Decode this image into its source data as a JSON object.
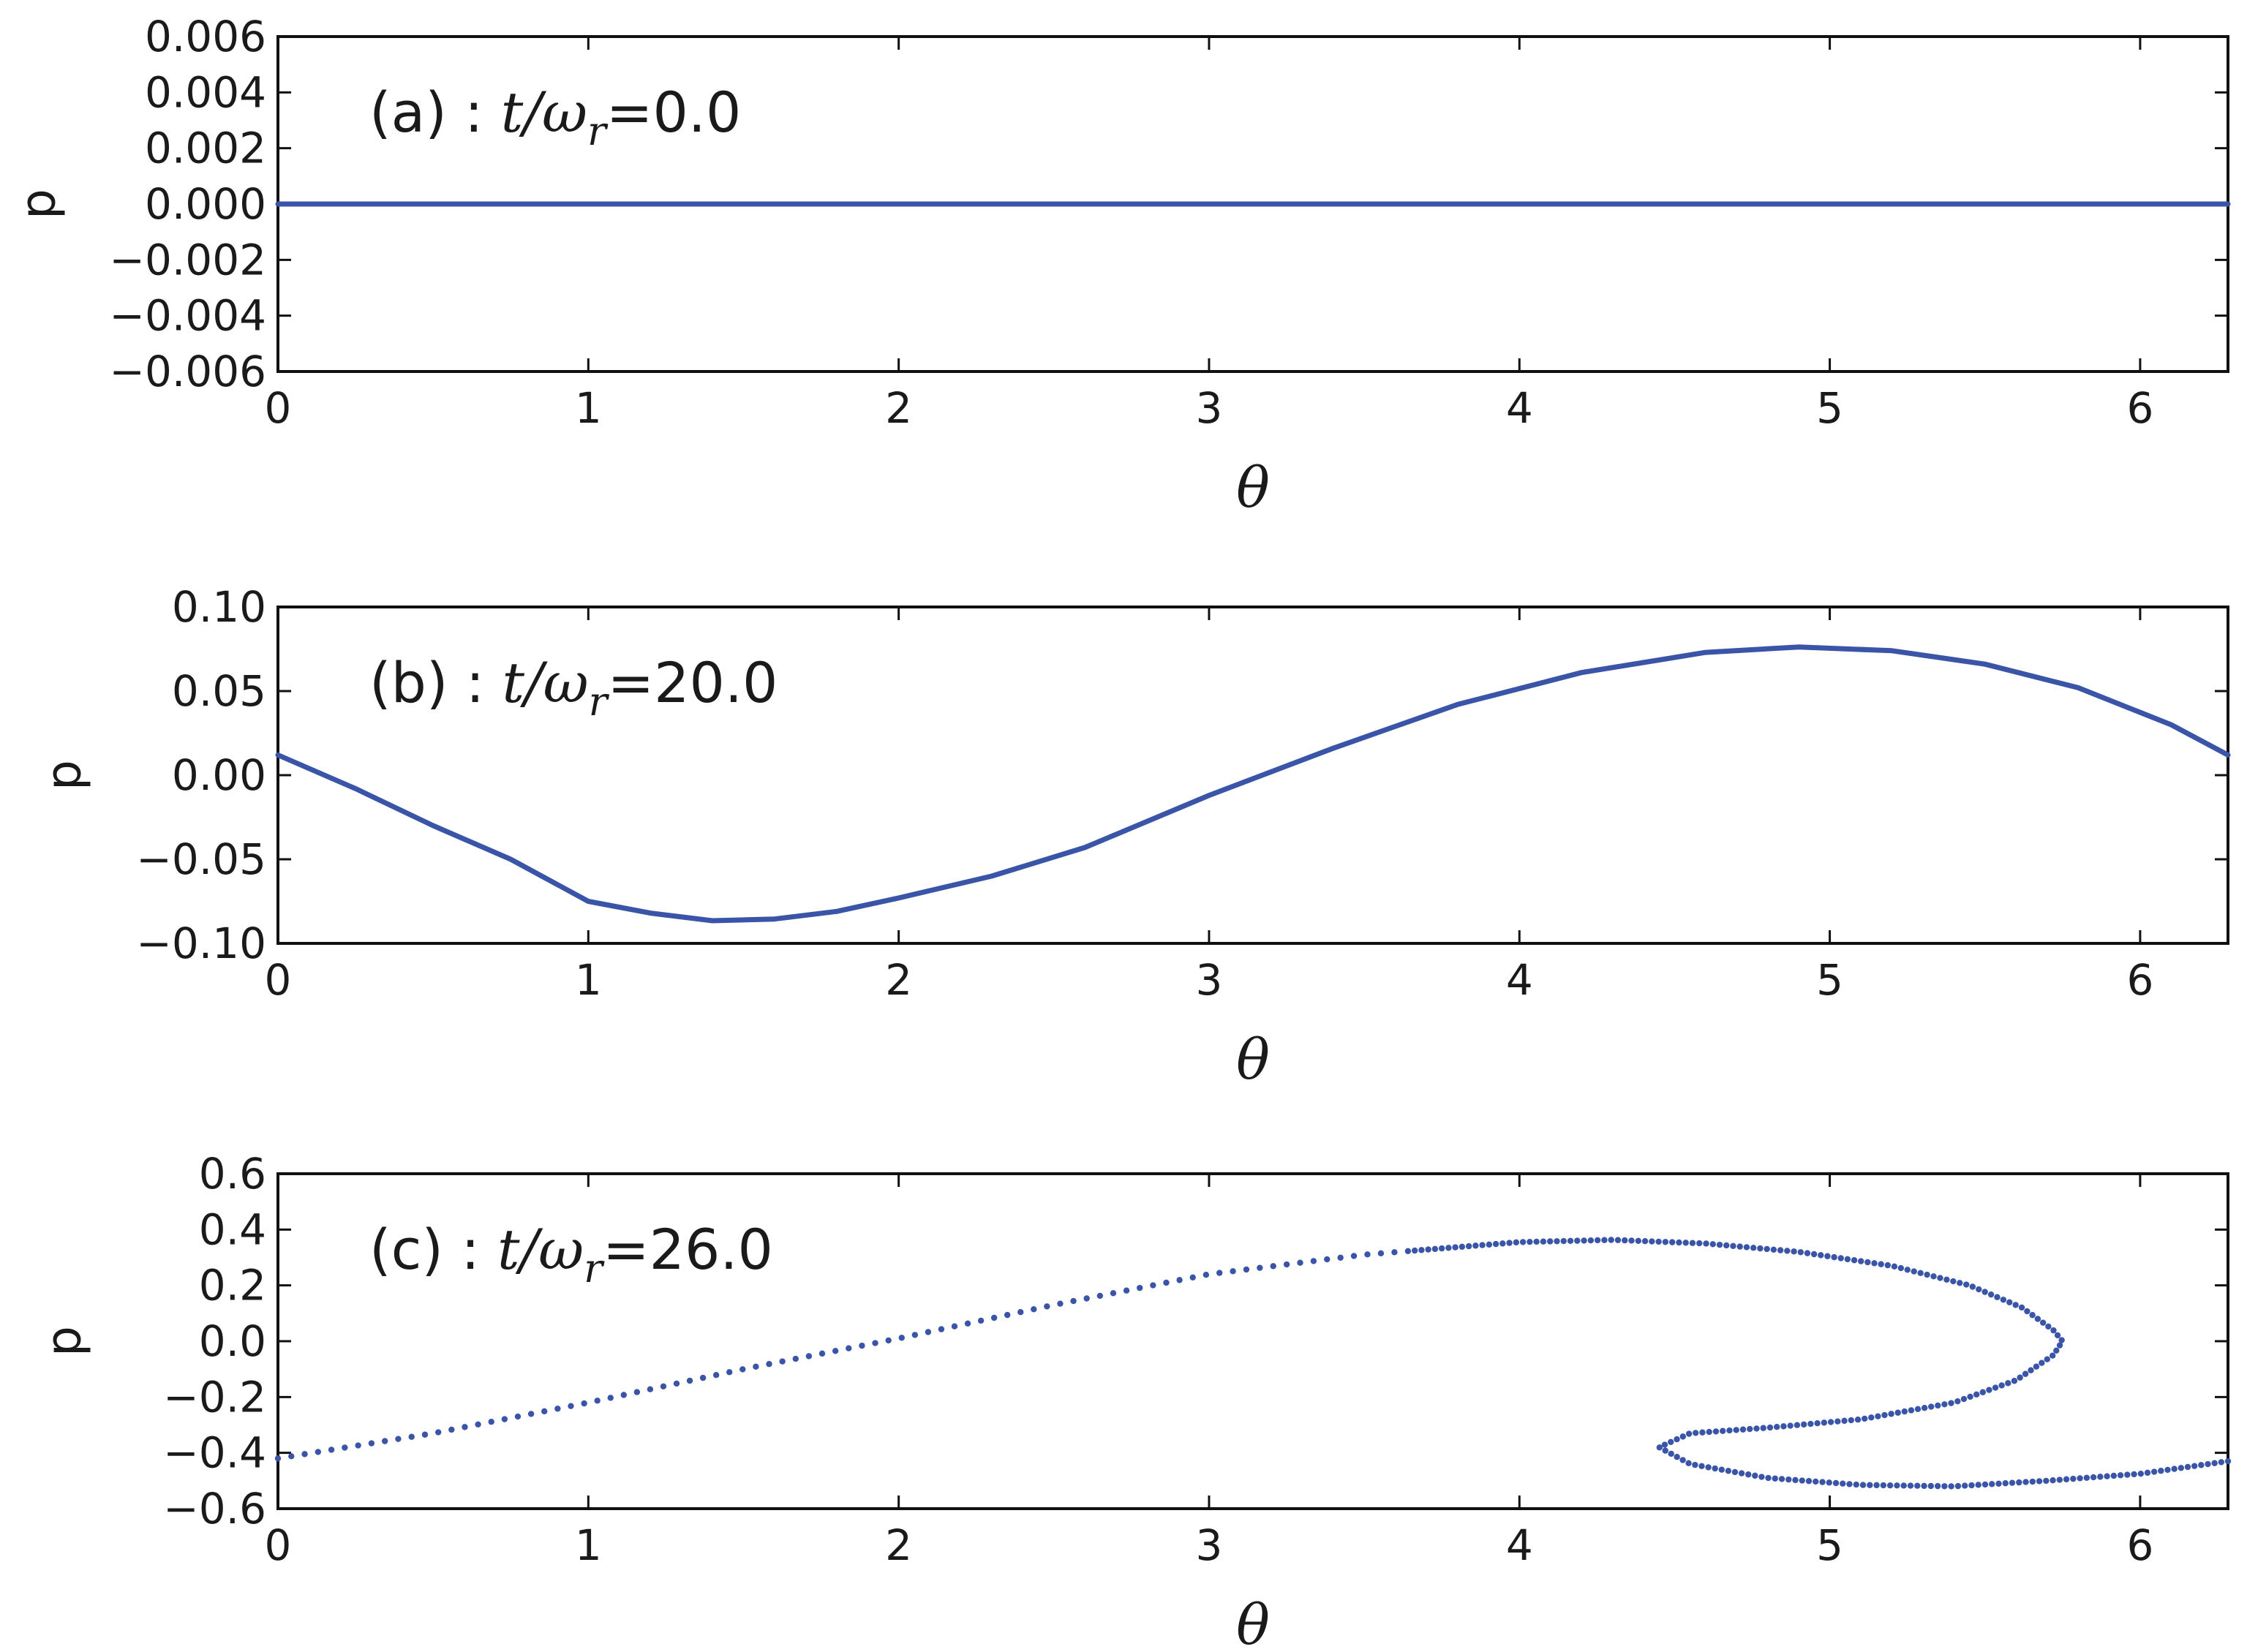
{
  "line_color": "#3a55a8",
  "chart_data": [
    {
      "type": "line",
      "annotation": {
        "prefix": "(a) : ",
        "t": "t",
        "slash": "/",
        "omega": "ω",
        "sub": "r",
        "value": "=0.0"
      },
      "xlabel": "θ",
      "ylabel": "p",
      "xlim": [
        0,
        6.283
      ],
      "ylim": [
        -0.006,
        0.006
      ],
      "xticks": [
        0,
        1,
        2,
        3,
        4,
        5,
        6
      ],
      "xtick_labels": [
        "0",
        "1",
        "2",
        "3",
        "4",
        "5",
        "6"
      ],
      "yticks": [
        -0.006,
        -0.004,
        -0.002,
        0.0,
        0.002,
        0.004,
        0.006
      ],
      "ytick_labels": [
        "−0.006",
        "−0.004",
        "−0.002",
        "0.000",
        "0.002",
        "0.004",
        "0.006"
      ],
      "style": "solid",
      "series": [
        {
          "points": [
            [
              0,
              0
            ],
            [
              1,
              0
            ],
            [
              2,
              0
            ],
            [
              3,
              0
            ],
            [
              4,
              0
            ],
            [
              5,
              0
            ],
            [
              6,
              0
            ],
            [
              6.283,
              0
            ]
          ]
        }
      ]
    },
    {
      "type": "line",
      "annotation": {
        "prefix": "(b) : ",
        "t": "t",
        "slash": "/",
        "omega": "ω",
        "sub": "r",
        "value": "=20.0"
      },
      "xlabel": "θ",
      "ylabel": "p",
      "xlim": [
        0,
        6.283
      ],
      "ylim": [
        -0.1,
        0.1
      ],
      "xticks": [
        0,
        1,
        2,
        3,
        4,
        5,
        6
      ],
      "xtick_labels": [
        "0",
        "1",
        "2",
        "3",
        "4",
        "5",
        "6"
      ],
      "yticks": [
        -0.1,
        -0.05,
        0.0,
        0.05,
        0.1
      ],
      "ytick_labels": [
        "−0.10",
        "−0.05",
        "0.00",
        "0.05",
        "0.10"
      ],
      "style": "solid",
      "series": [
        {
          "points": [
            [
              0,
              0.012
            ],
            [
              0.25,
              -0.008
            ],
            [
              0.5,
              -0.03
            ],
            [
              0.75,
              -0.05
            ],
            [
              1.0,
              -0.075
            ],
            [
              1.2,
              -0.082
            ],
            [
              1.4,
              -0.0865
            ],
            [
              1.6,
              -0.0855
            ],
            [
              1.8,
              -0.081
            ],
            [
              2.0,
              -0.073
            ],
            [
              2.3,
              -0.06
            ],
            [
              2.6,
              -0.043
            ],
            [
              3.0,
              -0.012
            ],
            [
              3.4,
              0.016
            ],
            [
              3.8,
              0.042
            ],
            [
              4.2,
              0.061
            ],
            [
              4.6,
              0.073
            ],
            [
              4.9,
              0.0762
            ],
            [
              5.2,
              0.074
            ],
            [
              5.5,
              0.066
            ],
            [
              5.8,
              0.052
            ],
            [
              6.1,
              0.03
            ],
            [
              6.283,
              0.012
            ]
          ]
        }
      ]
    },
    {
      "type": "line",
      "annotation": {
        "prefix": "(c) : ",
        "t": "t",
        "slash": "/",
        "omega": "ω",
        "sub": "r",
        "value": "=26.0"
      },
      "xlabel": "θ",
      "ylabel": "p",
      "xlim": [
        0,
        6.283
      ],
      "ylim": [
        -0.6,
        0.6
      ],
      "xticks": [
        0,
        1,
        2,
        3,
        4,
        5,
        6
      ],
      "xtick_labels": [
        "0",
        "1",
        "2",
        "3",
        "4",
        "5",
        "6"
      ],
      "yticks": [
        -0.6,
        -0.4,
        -0.2,
        0.0,
        0.2,
        0.4,
        0.6
      ],
      "ytick_labels": [
        "−0.6",
        "−0.4",
        "−0.2",
        "0.0",
        "0.2",
        "0.4",
        "0.6"
      ],
      "style": "dotted-to-solid",
      "series": [
        {
          "points": [
            [
              0,
              -0.42
            ],
            [
              0.5,
              -0.33
            ],
            [
              1.0,
              -0.22
            ],
            [
              1.5,
              -0.1
            ],
            [
              2.0,
              0.01
            ],
            [
              2.5,
              0.13
            ],
            [
              3.0,
              0.24
            ],
            [
              3.5,
              0.31
            ],
            [
              4.0,
              0.355
            ],
            [
              4.3,
              0.363
            ],
            [
              4.6,
              0.35
            ],
            [
              4.9,
              0.32
            ],
            [
              5.2,
              0.27
            ],
            [
              5.45,
              0.2
            ],
            [
              5.62,
              0.12
            ],
            [
              5.72,
              0.04
            ],
            [
              5.75,
              0.0
            ],
            [
              5.72,
              -0.05
            ],
            [
              5.6,
              -0.14
            ],
            [
              5.4,
              -0.22
            ],
            [
              5.1,
              -0.28
            ],
            [
              4.8,
              -0.31
            ],
            [
              4.55,
              -0.33
            ],
            [
              4.45,
              -0.38
            ],
            [
              4.55,
              -0.44
            ],
            [
              4.8,
              -0.49
            ],
            [
              5.1,
              -0.515
            ],
            [
              5.4,
              -0.52
            ],
            [
              5.7,
              -0.5
            ],
            [
              6.0,
              -0.475
            ],
            [
              6.283,
              -0.43
            ]
          ]
        }
      ]
    }
  ]
}
